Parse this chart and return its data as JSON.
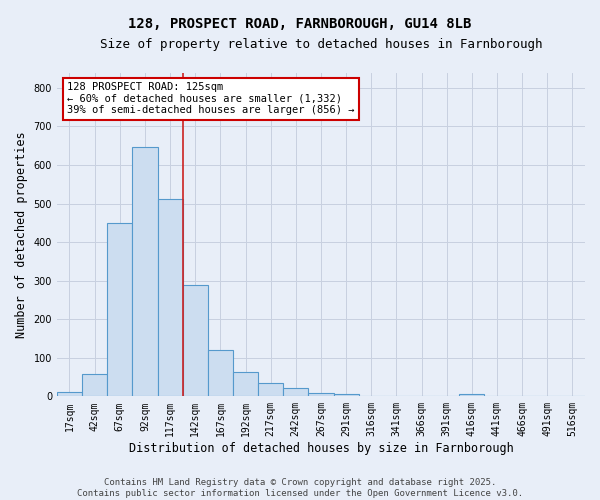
{
  "title_line1": "128, PROSPECT ROAD, FARNBOROUGH, GU14 8LB",
  "title_line2": "Size of property relative to detached houses in Farnborough",
  "xlabel": "Distribution of detached houses by size in Farnborough",
  "ylabel": "Number of detached properties",
  "bar_values": [
    12,
    57,
    450,
    648,
    512,
    290,
    120,
    63,
    35,
    22,
    8,
    5,
    0,
    0,
    0,
    0,
    5,
    0,
    0,
    0,
    0
  ],
  "bar_labels": [
    "17sqm",
    "42sqm",
    "67sqm",
    "92sqm",
    "117sqm",
    "142sqm",
    "167sqm",
    "192sqm",
    "217sqm",
    "242sqm",
    "267sqm",
    "291sqm",
    "316sqm",
    "341sqm",
    "366sqm",
    "391sqm",
    "416sqm",
    "441sqm",
    "466sqm",
    "491sqm",
    "516sqm"
  ],
  "bar_color": "#ccddf0",
  "bar_edge_color": "#5599cc",
  "background_color": "#e8eef8",
  "grid_color": "#c8d0e0",
  "vline_color": "#cc2222",
  "annotation_text": "128 PROSPECT ROAD: 125sqm\n← 60% of detached houses are smaller (1,332)\n39% of semi-detached houses are larger (856) →",
  "annotation_box_color": "#ffffff",
  "annotation_box_edge": "#cc0000",
  "ylim": [
    0,
    840
  ],
  "yticks": [
    0,
    100,
    200,
    300,
    400,
    500,
    600,
    700,
    800
  ],
  "footer_line1": "Contains HM Land Registry data © Crown copyright and database right 2025.",
  "footer_line2": "Contains public sector information licensed under the Open Government Licence v3.0.",
  "title_fontsize": 10,
  "subtitle_fontsize": 9,
  "axis_label_fontsize": 8.5,
  "tick_fontsize": 7,
  "annotation_fontsize": 7.5,
  "footer_fontsize": 6.5
}
